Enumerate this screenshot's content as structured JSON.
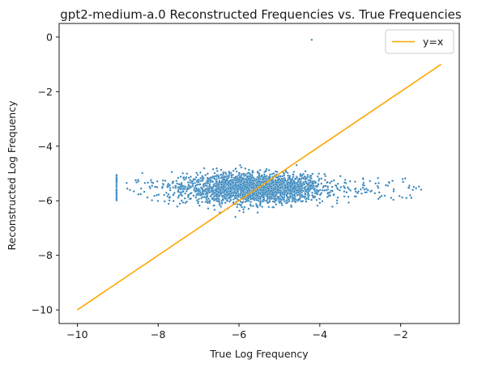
{
  "chart_data": {
    "type": "scatter",
    "title": "gpt2-medium-a.0 Reconstructed Frequencies vs. True Frequencies",
    "xlabel": "True Log Frequency",
    "ylabel": "Reconstructed Log Frequency",
    "xlim": [
      -10.45,
      -0.55
    ],
    "ylim": [
      -10.5,
      0.5
    ],
    "xticks": [
      -10,
      -8,
      -6,
      -4,
      -2
    ],
    "yticks": [
      -10,
      -8,
      -6,
      -4,
      -2,
      0
    ],
    "xtick_labels": [
      "−10",
      "−8",
      "−6",
      "−4",
      "−2"
    ],
    "ytick_labels": [
      "−10",
      "−8",
      "−6",
      "−4",
      "−2",
      "0"
    ],
    "grid": false,
    "legend": {
      "position": "top-right",
      "entries": [
        "y=x"
      ]
    },
    "series": [
      {
        "type": "scatter",
        "color": "#1f77b4",
        "cluster": {
          "x_range": [
            -9.03,
            -1.42
          ],
          "y_center": -5.55,
          "y_spread": 0.26,
          "densest_x": -5.6,
          "isolated_column_x": -9.03,
          "isolated_column_y_range": [
            -6.1,
            -5.05
          ]
        },
        "outlier_points": [
          {
            "x": -4.2,
            "y": -0.1
          }
        ]
      },
      {
        "name": "y=x",
        "type": "line",
        "color": "#ffa500",
        "x": [
          -10,
          -1
        ],
        "y": [
          -10,
          -1
        ]
      }
    ]
  }
}
